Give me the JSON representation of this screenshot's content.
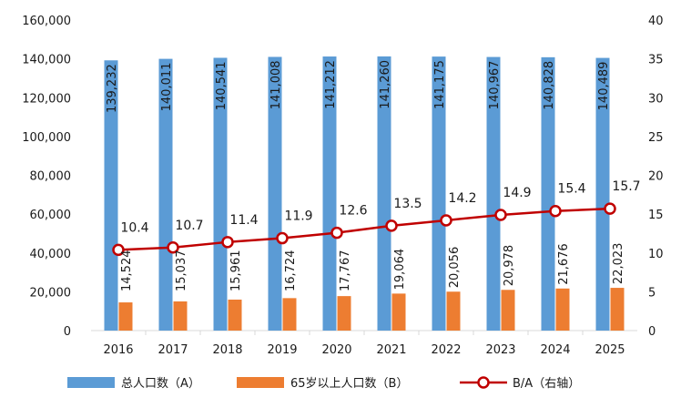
{
  "chart_data": {
    "type": "bar",
    "categories": [
      "2016",
      "2017",
      "2018",
      "2019",
      "2020",
      "2021",
      "2022",
      "2023",
      "2024",
      "2025"
    ],
    "series": [
      {
        "name": "总人口数（A）",
        "type": "bar",
        "axis": "left",
        "color": "#5b9bd5",
        "values": [
          139232,
          140011,
          140541,
          141008,
          141212,
          141260,
          141175,
          140967,
          140828,
          140489
        ],
        "labels": [
          "139,232",
          "140,011",
          "140,541",
          "141,008",
          "141,212",
          "141,260",
          "141,175",
          "140,967",
          "140,828",
          "140,489"
        ]
      },
      {
        "name": "65岁以上人口数（B）",
        "type": "bar",
        "axis": "left",
        "color": "#ed7d31",
        "values": [
          14524,
          15037,
          15961,
          16724,
          17767,
          19064,
          20056,
          20978,
          21676,
          22023
        ],
        "labels": [
          "14,524",
          "15,037",
          "15,961",
          "16,724",
          "17,767",
          "19,064",
          "20,056",
          "20,978",
          "21,676",
          "22,023"
        ]
      },
      {
        "name": "B/A（右轴）",
        "type": "line",
        "axis": "right",
        "color": "#c00000",
        "values": [
          10.4,
          10.7,
          11.4,
          11.9,
          12.6,
          13.5,
          14.2,
          14.9,
          15.4,
          15.7
        ],
        "labels": [
          "10.4",
          "10.7",
          "11.4",
          "11.9",
          "12.6",
          "13.5",
          "14.2",
          "14.9",
          "15.4",
          "15.7"
        ]
      }
    ],
    "left_axis": {
      "ylim": [
        0,
        160000
      ],
      "ticks": [
        0,
        20000,
        40000,
        60000,
        80000,
        100000,
        120000,
        140000,
        160000
      ],
      "tick_labels": [
        "0",
        "20,000",
        "40,000",
        "60,000",
        "80,000",
        "100,000",
        "120,000",
        "140,000",
        "160,000"
      ]
    },
    "right_axis": {
      "ylim": [
        0,
        40
      ],
      "ticks": [
        0,
        5,
        10,
        15,
        20,
        25,
        30,
        35,
        40
      ],
      "tick_labels": [
        "0",
        "5",
        "10",
        "15",
        "20",
        "25",
        "30",
        "35",
        "40"
      ]
    },
    "title": "",
    "xlabel": "",
    "ylabel": "",
    "grid": false,
    "legend_position": "bottom",
    "colors": {
      "axis": "#d9d9d9",
      "text": "#1a1a1a"
    }
  }
}
